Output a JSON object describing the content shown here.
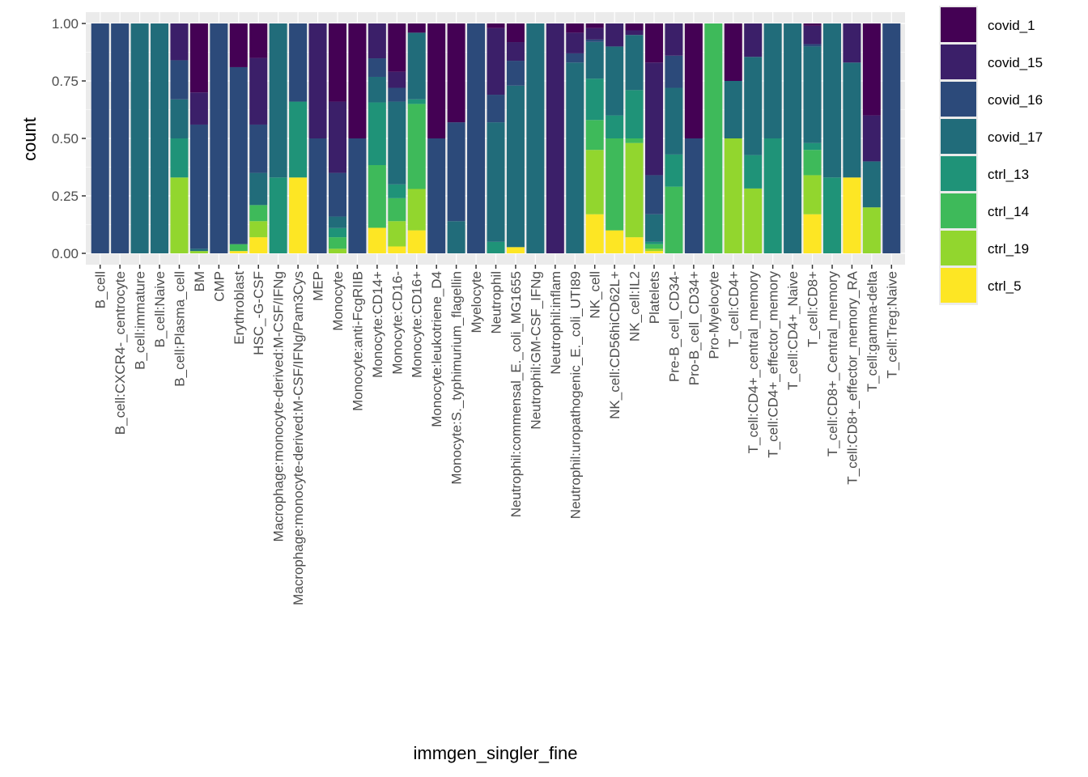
{
  "chart_data": {
    "type": "bar",
    "stacked": true,
    "normalized": true,
    "title": "",
    "xlabel": "immgen_singler_fine",
    "ylabel": "count",
    "ylim": [
      0,
      1
    ],
    "yticks": [
      "0.00",
      "0.25",
      "0.50",
      "0.75",
      "1.00"
    ],
    "yticks_values": [
      0,
      0.25,
      0.5,
      0.75,
      1.0
    ],
    "grid": true,
    "legend_position": "right",
    "legend": [
      {
        "name": "covid_1",
        "color": "#440154"
      },
      {
        "name": "covid_15",
        "color": "#3B1F69"
      },
      {
        "name": "covid_16",
        "color": "#2C4A7A"
      },
      {
        "name": "covid_17",
        "color": "#216C7A"
      },
      {
        "name": "ctrl_13",
        "color": "#1F9378"
      },
      {
        "name": "ctrl_14",
        "color": "#3EBA5A"
      },
      {
        "name": "ctrl_19",
        "color": "#92D62E"
      },
      {
        "name": "ctrl_5",
        "color": "#FDE624"
      }
    ],
    "stack_order_bottom_to_top": [
      "ctrl_5",
      "ctrl_19",
      "ctrl_14",
      "ctrl_13",
      "covid_17",
      "covid_16",
      "covid_15",
      "covid_1"
    ],
    "categories": [
      "B_cell",
      "B_cell:CXCR4-_centrocyte",
      "B_cell:immature",
      "B_cell:Naive",
      "B_cell:Plasma_cell",
      "BM",
      "CMP",
      "Erythroblast",
      "HSC_-G-CSF",
      "Macrophage:monocyte-derived:M-CSF/IFNg",
      "Macrophage:monocyte-derived:M-CSF/IFNg/Pam3Cys",
      "MEP",
      "Monocyte",
      "Monocyte:anti-FcgRIIB",
      "Monocyte:CD14+",
      "Monocyte:CD16-",
      "Monocyte:CD16+",
      "Monocyte:leukotriene_D4",
      "Monocyte:S._typhimurium_flagellin",
      "Myelocyte",
      "Neutrophil",
      "Neutrophil:commensal_E._coli_MG1655",
      "Neutrophil:GM-CSF_IFNg",
      "Neutrophil:inflam",
      "Neutrophil:uropathogenic_E._coli_UTI89",
      "NK_cell",
      "NK_cell:CD56hiCD62L+",
      "NK_cell:IL2",
      "Platelets",
      "Pre-B_cell_CD34-",
      "Pro-B_cell_CD34+",
      "Pro-Myelocyte",
      "T_cell:CD4+",
      "T_cell:CD4+_central_memory",
      "T_cell:CD4+_effector_memory",
      "T_cell:CD4+_Naive",
      "T_cell:CD8+",
      "T_cell:CD8+_Central_memory",
      "T_cell:CD8+_effector_memory_RA",
      "T_cell:gamma-delta",
      "T_cell:Treg:Naive"
    ],
    "series": [
      {
        "name": "ctrl_5",
        "values": [
          0,
          0,
          0,
          0,
          0,
          0,
          0,
          0.01,
          0.07,
          0,
          0.33,
          0,
          0,
          0,
          0.11,
          0.03,
          0.1,
          0,
          0,
          0,
          0,
          0.03,
          0,
          0,
          0,
          0.17,
          0.1,
          0.07,
          0.01,
          0,
          0,
          0,
          0,
          0,
          0,
          0,
          0.17,
          0,
          0.33,
          0,
          0
        ]
      },
      {
        "name": "ctrl_19",
        "values": [
          0,
          0,
          0,
          0,
          0.33,
          0.01,
          0,
          0,
          0.07,
          0,
          0,
          0,
          0.02,
          0,
          0,
          0.11,
          0.18,
          0,
          0,
          0,
          0,
          0,
          0,
          0,
          0,
          0.28,
          0,
          0.41,
          0.01,
          0,
          0,
          0,
          0.5,
          0.33,
          0,
          0,
          0.17,
          0,
          0,
          0.2,
          0
        ]
      },
      {
        "name": "ctrl_14",
        "values": [
          0,
          0,
          0,
          0,
          0,
          0,
          0,
          0.03,
          0.07,
          0,
          0,
          0,
          0.05,
          0,
          0.27,
          0.1,
          0.37,
          0,
          0,
          0,
          0,
          0,
          0,
          0,
          0,
          0.13,
          0.4,
          0.02,
          0.02,
          0.29,
          0,
          1.0,
          0,
          0,
          0,
          0,
          0.11,
          0,
          0,
          0,
          0
        ]
      },
      {
        "name": "ctrl_13",
        "values": [
          0,
          0,
          0,
          0,
          0.17,
          0,
          0,
          0,
          0,
          0.33,
          0.33,
          0,
          0.04,
          0,
          0.27,
          0.06,
          0.02,
          0,
          0,
          0,
          0.05,
          0,
          0,
          0,
          0,
          0.18,
          0.1,
          0.21,
          0.01,
          0.14,
          0,
          0,
          0,
          0.17,
          0.5,
          0,
          0.03,
          0.33,
          0,
          0,
          0
        ]
      },
      {
        "name": "covid_17",
        "values": [
          0,
          0,
          1.0,
          1.0,
          0.17,
          0.01,
          0,
          0,
          0.14,
          0.67,
          0,
          0,
          0.05,
          0,
          0.11,
          0.36,
          0.29,
          0,
          0.14,
          0,
          0.52,
          0.78,
          1.0,
          0,
          0.83,
          0.16,
          0.3,
          0.24,
          0.12,
          0.29,
          0,
          0,
          0.25,
          0.5,
          0.5,
          1.0,
          0.42,
          0.67,
          0.5,
          0.2,
          0
        ]
      },
      {
        "name": "covid_16",
        "values": [
          1.0,
          1.0,
          0,
          0,
          0.17,
          0.54,
          1.0,
          0.77,
          0.21,
          0,
          0.34,
          0.5,
          0.19,
          0.5,
          0.08,
          0.06,
          0,
          0.5,
          0.43,
          1.0,
          0.12,
          0.12,
          0,
          0,
          0.04,
          0.01,
          0,
          0,
          0.17,
          0.14,
          0.5,
          0,
          0,
          0,
          0,
          0,
          0.01,
          0,
          0,
          0,
          1.0
        ]
      },
      {
        "name": "covid_15",
        "values": [
          0,
          0,
          0,
          0,
          0.16,
          0.14,
          0,
          0,
          0.29,
          0,
          0,
          0.5,
          0.31,
          0,
          0.15,
          0.07,
          0,
          0,
          0,
          0,
          0.29,
          0.09,
          0,
          1.0,
          0.09,
          0.05,
          0.1,
          0.02,
          0.49,
          0.14,
          0,
          0,
          0,
          0.17,
          0,
          0,
          0.08,
          0,
          0.17,
          0.2,
          0
        ]
      },
      {
        "name": "covid_1",
        "values": [
          0,
          0,
          0,
          0,
          0,
          0.3,
          0,
          0.19,
          0.15,
          0,
          0,
          0,
          0.34,
          0.5,
          0,
          0.21,
          0.04,
          0.5,
          0.43,
          0,
          0.02,
          0.09,
          0,
          0,
          0.04,
          0.02,
          0,
          0.03,
          0.17,
          0,
          0.5,
          0,
          0.25,
          0,
          0,
          0,
          0.01,
          0,
          0,
          0.4,
          0
        ]
      }
    ]
  }
}
